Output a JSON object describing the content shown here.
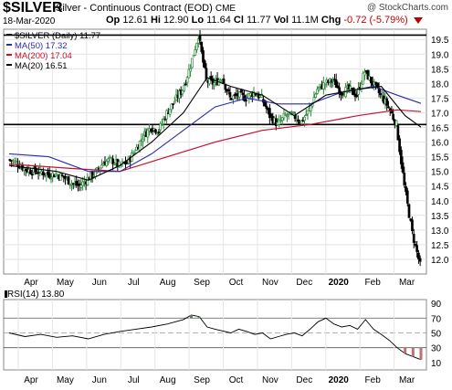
{
  "header": {
    "symbol": "$SILVER",
    "name": "Silver - Continuous Contract (EOD)",
    "exchange": "CME",
    "brand": "@ StockCharts.com",
    "date": "18-Mar-2020",
    "open_label": "Op",
    "open": "12.61",
    "high_label": "Hi",
    "high": "12.90",
    "low_label": "Lo",
    "low": "11.64",
    "close_label": "Cl",
    "close": "11.77",
    "volume_label": "Vol",
    "volume": "11.1M",
    "change_label": "Chg",
    "change": "-0.72 (-5.79%)"
  },
  "colors": {
    "up": "#2e8b3a",
    "down": "#000000",
    "ma50": "#2b2bb0",
    "ma200": "#c8102e",
    "ma20": "#000000",
    "rsi": "#000000",
    "rsi_fill": "#5e7c5e",
    "rsi_fill_low": "#c07070"
  },
  "chart_data": [
    {
      "type": "candlestick",
      "legend": [
        {
          "label": "$SILVER (Daily) 11.77",
          "color": "#000000"
        },
        {
          "label": "MA(50) 17.32",
          "color": "#2b2bb0"
        },
        {
          "label": "MA(200) 17.04",
          "color": "#c8102e"
        },
        {
          "label": "MA(20) 16.51",
          "color": "#000000"
        }
      ],
      "legend_position": "top-left",
      "x_labels": [
        "Apr",
        "May",
        "Jun",
        "Jul",
        "Aug",
        "Sep",
        "Oct",
        "Nov",
        "Dec",
        "2020",
        "Feb",
        "Mar"
      ],
      "y_ticks": [
        12.0,
        12.5,
        13.0,
        13.5,
        14.0,
        14.5,
        15.0,
        15.5,
        16.0,
        16.5,
        17.0,
        17.5,
        18.0,
        18.5,
        19.0,
        19.5
      ],
      "ylim": [
        11.5,
        19.85
      ],
      "horizontal_lines": [
        19.65,
        16.6
      ],
      "grid": true,
      "weekly_path": [
        [
          0,
          15.4
        ],
        [
          1,
          15.3
        ],
        [
          2,
          15.1
        ],
        [
          3,
          15.0
        ],
        [
          4,
          15.0
        ],
        [
          5,
          14.9
        ],
        [
          6,
          14.9
        ],
        [
          7,
          14.8
        ],
        [
          8,
          14.6
        ],
        [
          9,
          14.5
        ],
        [
          10,
          14.75
        ],
        [
          11,
          14.95
        ],
        [
          12,
          15.3
        ],
        [
          13,
          15.4
        ],
        [
          14,
          15.2
        ],
        [
          15,
          15.3
        ],
        [
          16,
          15.7
        ],
        [
          17,
          16.2
        ],
        [
          18,
          16.5
        ],
        [
          19,
          16.4
        ],
        [
          20,
          17.0
        ],
        [
          21,
          17.4
        ],
        [
          22,
          17.8
        ],
        [
          23,
          18.6
        ],
        [
          24,
          19.65
        ],
        [
          25,
          18.1
        ],
        [
          26,
          18.0
        ],
        [
          27,
          18.2
        ],
        [
          28,
          17.5
        ],
        [
          29,
          17.6
        ],
        [
          30,
          17.5
        ],
        [
          31,
          17.7
        ],
        [
          32,
          17.5
        ],
        [
          33,
          16.9
        ],
        [
          34,
          16.6
        ],
        [
          35,
          16.9
        ],
        [
          36,
          16.9
        ],
        [
          37,
          16.7
        ],
        [
          38,
          17.1
        ],
        [
          39,
          17.8
        ],
        [
          40,
          18.0
        ],
        [
          41,
          18.1
        ],
        [
          42,
          17.7
        ],
        [
          43,
          17.8
        ],
        [
          44,
          17.6
        ],
        [
          45,
          18.4
        ],
        [
          46,
          18.0
        ],
        [
          47,
          17.6
        ],
        [
          48,
          17.2
        ],
        [
          49,
          16.6
        ],
        [
          50,
          14.5
        ],
        [
          51,
          12.9
        ],
        [
          52,
          11.8
        ]
      ],
      "ma50": [
        [
          0,
          15.6
        ],
        [
          5,
          15.5
        ],
        [
          10,
          15.0
        ],
        [
          14,
          15.0
        ],
        [
          18,
          15.6
        ],
        [
          22,
          16.4
        ],
        [
          26,
          17.2
        ],
        [
          30,
          17.5
        ],
        [
          34,
          17.3
        ],
        [
          38,
          17.3
        ],
        [
          42,
          17.7
        ],
        [
          46,
          17.9
        ],
        [
          49,
          17.6
        ],
        [
          52,
          17.32
        ]
      ],
      "ma200": [
        [
          0,
          15.25
        ],
        [
          8,
          15.1
        ],
        [
          14,
          15.0
        ],
        [
          20,
          15.5
        ],
        [
          26,
          16.0
        ],
        [
          32,
          16.4
        ],
        [
          38,
          16.6
        ],
        [
          44,
          16.9
        ],
        [
          49,
          17.1
        ],
        [
          52,
          17.04
        ]
      ],
      "ma20": [
        [
          0,
          15.2
        ],
        [
          6,
          15.0
        ],
        [
          10,
          14.7
        ],
        [
          14,
          15.2
        ],
        [
          18,
          16.0
        ],
        [
          22,
          17.0
        ],
        [
          25,
          18.2
        ],
        [
          28,
          17.9
        ],
        [
          32,
          17.6
        ],
        [
          36,
          16.9
        ],
        [
          40,
          17.6
        ],
        [
          44,
          17.8
        ],
        [
          47,
          17.9
        ],
        [
          50,
          16.9
        ],
        [
          52,
          16.51
        ]
      ]
    },
    {
      "type": "line",
      "name": "RSI(14) 13.80",
      "legend": [
        {
          "label": "RSI(14) 13.80",
          "color": "#000000"
        }
      ],
      "y_ticks": [
        10,
        30,
        50,
        70,
        90
      ],
      "ylim": [
        0,
        95
      ],
      "reference_lines": [
        70,
        50,
        30
      ],
      "x_labels": [
        "Apr",
        "May",
        "Jun",
        "Jul",
        "Aug",
        "Sep",
        "Oct",
        "Nov",
        "Dec",
        "2020",
        "Feb",
        "Mar"
      ],
      "values": [
        [
          0,
          50
        ],
        [
          2,
          45
        ],
        [
          4,
          48
        ],
        [
          6,
          44
        ],
        [
          8,
          46
        ],
        [
          10,
          42
        ],
        [
          12,
          48
        ],
        [
          14,
          52
        ],
        [
          16,
          55
        ],
        [
          18,
          58
        ],
        [
          20,
          62
        ],
        [
          22,
          68
        ],
        [
          23,
          74
        ],
        [
          24,
          72
        ],
        [
          25,
          58
        ],
        [
          26,
          55
        ],
        [
          28,
          50
        ],
        [
          29,
          55
        ],
        [
          30,
          52
        ],
        [
          31,
          48
        ],
        [
          32,
          50
        ],
        [
          33,
          42
        ],
        [
          34,
          45
        ],
        [
          35,
          48
        ],
        [
          36,
          50
        ],
        [
          37,
          46
        ],
        [
          38,
          55
        ],
        [
          39,
          65
        ],
        [
          40,
          70
        ],
        [
          41,
          62
        ],
        [
          42,
          58
        ],
        [
          43,
          60
        ],
        [
          44,
          55
        ],
        [
          45,
          68
        ],
        [
          46,
          55
        ],
        [
          47,
          48
        ],
        [
          48,
          40
        ],
        [
          49,
          30
        ],
        [
          50,
          22
        ],
        [
          51,
          18
        ],
        [
          52,
          13.8
        ]
      ]
    }
  ]
}
